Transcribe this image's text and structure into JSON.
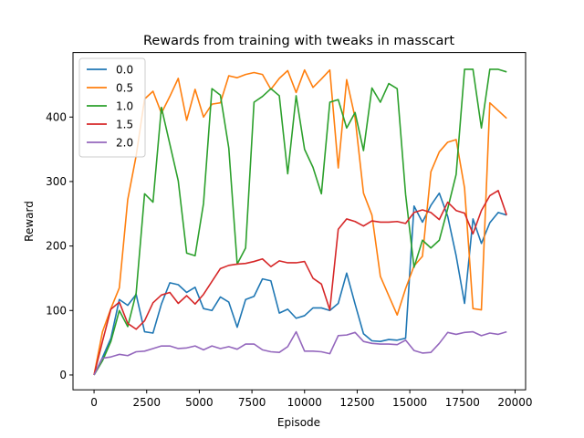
{
  "chart_data": {
    "type": "line",
    "title": "Rewards from training with tweaks in masscart",
    "xlabel": "Episode",
    "ylabel": "Reward",
    "xlim": [
      -1000,
      20500
    ],
    "ylim": [
      -23,
      500
    ],
    "xticks": [
      0,
      2500,
      5000,
      7500,
      10000,
      12500,
      15000,
      17500,
      20000
    ],
    "yticks": [
      0,
      100,
      200,
      300,
      400
    ],
    "grid": false,
    "legend_position": "top-left",
    "x": [
      0,
      400,
      800,
      1200,
      1600,
      2000,
      2400,
      2800,
      3200,
      3600,
      4000,
      4400,
      4800,
      5200,
      5600,
      6000,
      6400,
      6800,
      7200,
      7600,
      8000,
      8400,
      8800,
      9200,
      9600,
      10000,
      10400,
      10800,
      11200,
      11600,
      12000,
      12400,
      12800,
      13200,
      13600,
      14000,
      14400,
      14800,
      15200,
      15600,
      16000,
      16400,
      16800,
      17200,
      17600,
      18000,
      18400,
      18800,
      19200,
      19600
    ],
    "series": [
      {
        "name": "0.0",
        "color": "#1f77b4",
        "values": [
          0,
          27,
          57,
          117,
          108,
          125,
          67,
          65,
          110,
          143,
          140,
          128,
          136,
          103,
          100,
          121,
          113,
          74,
          117,
          122,
          149,
          146,
          96,
          102,
          88,
          92,
          104,
          104,
          100,
          111,
          158,
          110,
          64,
          53,
          52,
          55,
          54,
          57,
          262,
          237,
          263,
          282,
          246,
          185,
          111,
          242,
          204,
          236,
          252,
          248
        ]
      },
      {
        "name": "0.5",
        "color": "#ff7f0e",
        "values": [
          0,
          67,
          103,
          135,
          272,
          340,
          428,
          440,
          406,
          432,
          460,
          395,
          443,
          400,
          420,
          422,
          464,
          461,
          466,
          469,
          466,
          443,
          460,
          472,
          438,
          473,
          446,
          459,
          473,
          321,
          458,
          399,
          282,
          248,
          153,
          123,
          93,
          134,
          169,
          184,
          315,
          346,
          361,
          365,
          290,
          103,
          101,
          422,
          410,
          398
        ]
      },
      {
        "name": "1.0",
        "color": "#2ca02c",
        "values": [
          0,
          22,
          52,
          100,
          75,
          127,
          281,
          268,
          415,
          358,
          301,
          189,
          185,
          266,
          444,
          434,
          352,
          172,
          197,
          423,
          432,
          444,
          433,
          312,
          433,
          350,
          322,
          281,
          423,
          427,
          383,
          407,
          348,
          445,
          423,
          452,
          444,
          280,
          167,
          209,
          197,
          209,
          258,
          311,
          474,
          474,
          383,
          474,
          474,
          470
        ]
      },
      {
        "name": "1.5",
        "color": "#d62728",
        "values": [
          0,
          52,
          102,
          113,
          80,
          71,
          84,
          112,
          124,
          128,
          111,
          123,
          110,
          125,
          145,
          165,
          170,
          172,
          173,
          176,
          180,
          168,
          177,
          174,
          174,
          176,
          150,
          141,
          101,
          226,
          242,
          238,
          231,
          239,
          237,
          237,
          238,
          235,
          252,
          256,
          252,
          241,
          268,
          255,
          251,
          219,
          255,
          278,
          286,
          248
        ]
      },
      {
        "name": "2.0",
        "color": "#9467bd",
        "values": [
          0,
          26,
          28,
          32,
          30,
          36,
          37,
          41,
          45,
          45,
          41,
          42,
          45,
          39,
          45,
          41,
          44,
          40,
          48,
          48,
          39,
          36,
          35,
          44,
          67,
          37,
          37,
          36,
          33,
          61,
          62,
          66,
          52,
          49,
          48,
          48,
          47,
          54,
          38,
          34,
          35,
          49,
          66,
          63,
          66,
          67,
          61,
          65,
          63,
          67
        ]
      }
    ]
  },
  "colors": {
    "background": "#ffffff",
    "axes": "#000000",
    "legend_border": "#cccccc"
  }
}
